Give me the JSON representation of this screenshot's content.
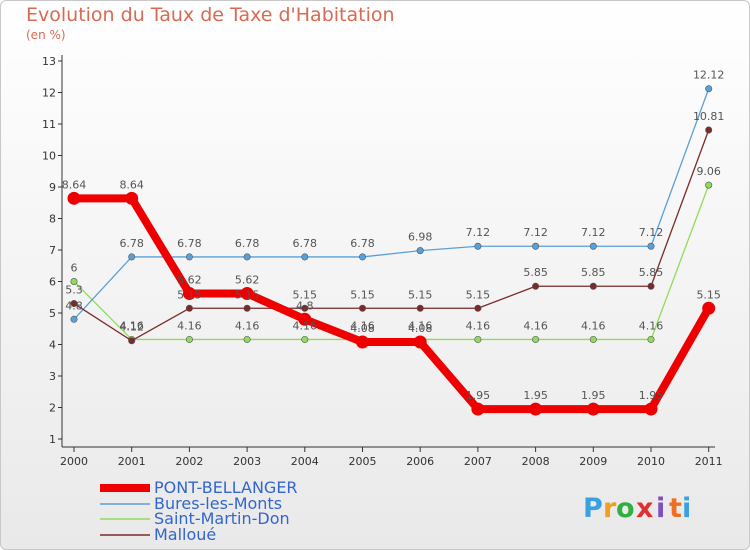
{
  "chart_data": {
    "type": "line",
    "title": "Evolution du Taux de Taxe d'Habitation",
    "subtitle": "(en %)",
    "x": [
      "2000",
      "2001",
      "2002",
      "2003",
      "2004",
      "2005",
      "2006",
      "2007",
      "2008",
      "2009",
      "2010",
      "2011"
    ],
    "ylim": [
      1,
      13
    ],
    "yticks": [
      "1",
      "2",
      "3",
      "4",
      "5",
      "6",
      "7",
      "8",
      "9",
      "10",
      "11",
      "12",
      "13"
    ],
    "grid": false,
    "legend_position": "bottom-left",
    "series": [
      {
        "name": "PONT-BELLANGER",
        "color": "#ee0000",
        "values": [
          8.64,
          8.64,
          5.62,
          5.62,
          4.8,
          4.08,
          4.08,
          1.95,
          1.95,
          1.95,
          1.95,
          5.15
        ],
        "labels": [
          "8.64",
          "8.64",
          "5.62",
          "5.62",
          "4.8",
          "4.08",
          "4.08",
          "1.95",
          "1.95",
          "1.95",
          "1.95",
          "5.15"
        ]
      },
      {
        "name": "Bures-les-Monts",
        "color": "#5aa0d8",
        "values": [
          4.8,
          6.78,
          6.78,
          6.78,
          6.78,
          6.78,
          6.98,
          7.12,
          7.12,
          7.12,
          7.12,
          12.12
        ],
        "labels": [
          "4.8",
          "6.78",
          "6.78",
          "6.78",
          "6.78",
          "6.78",
          "6.98",
          "7.12",
          "7.12",
          "7.12",
          "7.12",
          "12.12"
        ]
      },
      {
        "name": "Saint-Martin-Don",
        "color": "#8fdc5a",
        "values": [
          6,
          4.16,
          4.16,
          4.16,
          4.16,
          4.16,
          4.16,
          4.16,
          4.16,
          4.16,
          4.16,
          9.06
        ],
        "labels": [
          "6",
          "4.16",
          "4.16",
          "4.16",
          "4.16",
          "4.16",
          "4.16",
          "4.16",
          "4.16",
          "4.16",
          "4.16",
          "9.06"
        ]
      },
      {
        "name": "Malloué",
        "color": "#7a2a2a",
        "values": [
          5.3,
          4.12,
          5.15,
          5.15,
          5.15,
          5.15,
          5.15,
          5.15,
          5.85,
          5.85,
          5.85,
          10.81
        ],
        "labels": [
          "5.3",
          "4.12",
          "5.15",
          "5.15",
          "5.15",
          "5.15",
          "5.15",
          "5.15",
          "5.85",
          "5.85",
          "5.85",
          "10.81"
        ]
      }
    ]
  },
  "brand": {
    "letters": [
      "P",
      "r",
      "o",
      "x",
      "i",
      "t",
      "i"
    ],
    "colors": [
      "#3aa0e0",
      "#f0a020",
      "#30b040",
      "#e03030",
      "#8050c0",
      "#f07020",
      "#3aa0e0"
    ]
  }
}
